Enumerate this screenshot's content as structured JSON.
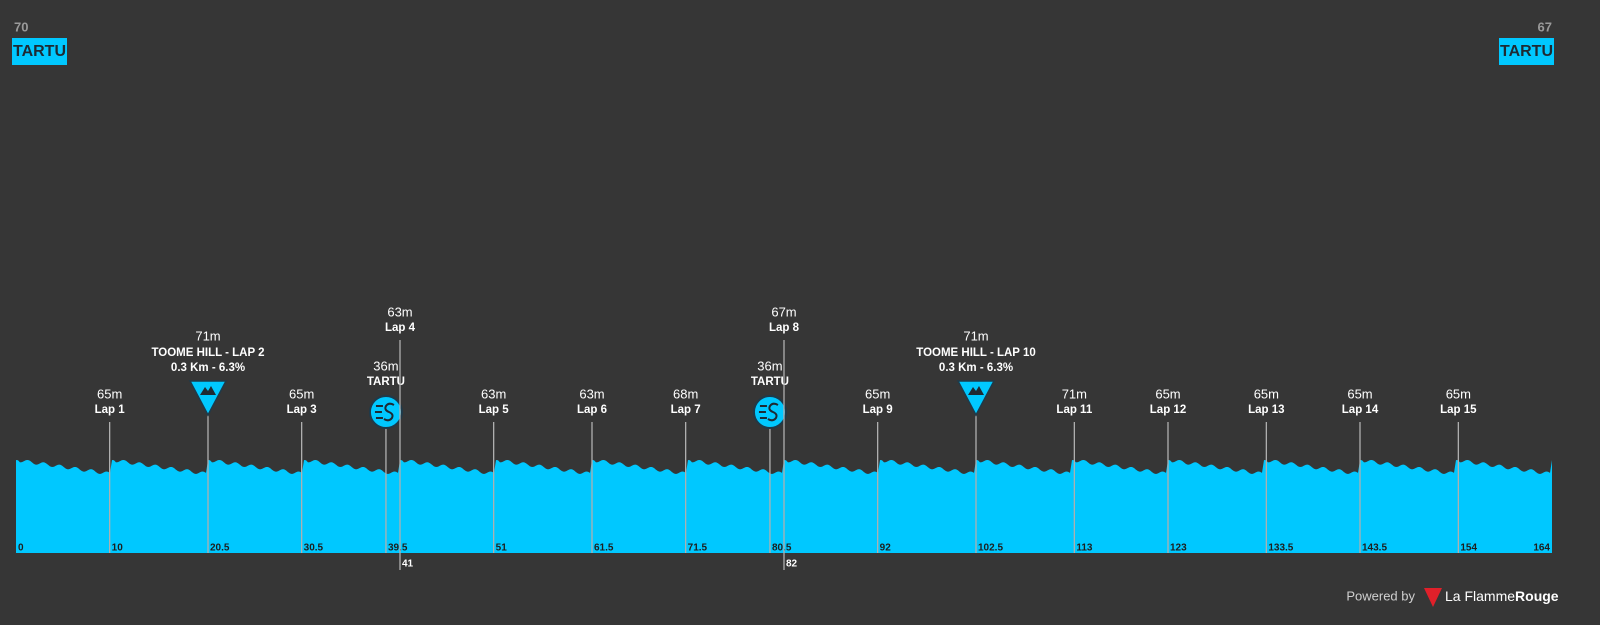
{
  "start": {
    "altitude": "70",
    "name": "TARTU"
  },
  "finish": {
    "altitude": "67",
    "name": "TARTU"
  },
  "km_range": [
    0,
    164
  ],
  "markers": [
    {
      "kind": "lap",
      "km": 10,
      "altitude": "65m",
      "label": "Lap 1"
    },
    {
      "kind": "kom",
      "km": 20.5,
      "altitude": "71m",
      "label": "TOOME HILL - LAP 2",
      "detail": "0.3 Km - 6.3%"
    },
    {
      "kind": "lap",
      "km": 30.5,
      "altitude": "65m",
      "label": "Lap 3"
    },
    {
      "kind": "sprint",
      "km": 39.5,
      "altitude": "36m",
      "label": "TARTU"
    },
    {
      "kind": "lap",
      "km": 41,
      "altitude": "63m",
      "label": "Lap 4"
    },
    {
      "kind": "lap",
      "km": 51,
      "altitude": "63m",
      "label": "Lap 5"
    },
    {
      "kind": "lap",
      "km": 61.5,
      "altitude": "63m",
      "label": "Lap 6"
    },
    {
      "kind": "lap",
      "km": 71.5,
      "altitude": "68m",
      "label": "Lap 7"
    },
    {
      "kind": "sprint",
      "km": 80.5,
      "altitude": "36m",
      "label": "TARTU"
    },
    {
      "kind": "lap",
      "km": 82,
      "altitude": "67m",
      "label": "Lap 8"
    },
    {
      "kind": "lap",
      "km": 92,
      "altitude": "65m",
      "label": "Lap 9"
    },
    {
      "kind": "kom",
      "km": 102.5,
      "altitude": "71m",
      "label": "TOOME HILL - LAP 10",
      "detail": "0.3 Km - 6.3%"
    },
    {
      "kind": "lap",
      "km": 113,
      "altitude": "71m",
      "label": "Lap 11"
    },
    {
      "kind": "lap",
      "km": 123,
      "altitude": "65m",
      "label": "Lap 12"
    },
    {
      "kind": "lap",
      "km": 133.5,
      "altitude": "65m",
      "label": "Lap 13"
    },
    {
      "kind": "lap",
      "km": 143.5,
      "altitude": "65m",
      "label": "Lap 14"
    },
    {
      "kind": "lap",
      "km": 154,
      "altitude": "65m",
      "label": "Lap 15"
    }
  ],
  "footer": {
    "powered_by": "Powered by",
    "brand_a": "La Flamme",
    "brand_b": "Rouge"
  }
}
